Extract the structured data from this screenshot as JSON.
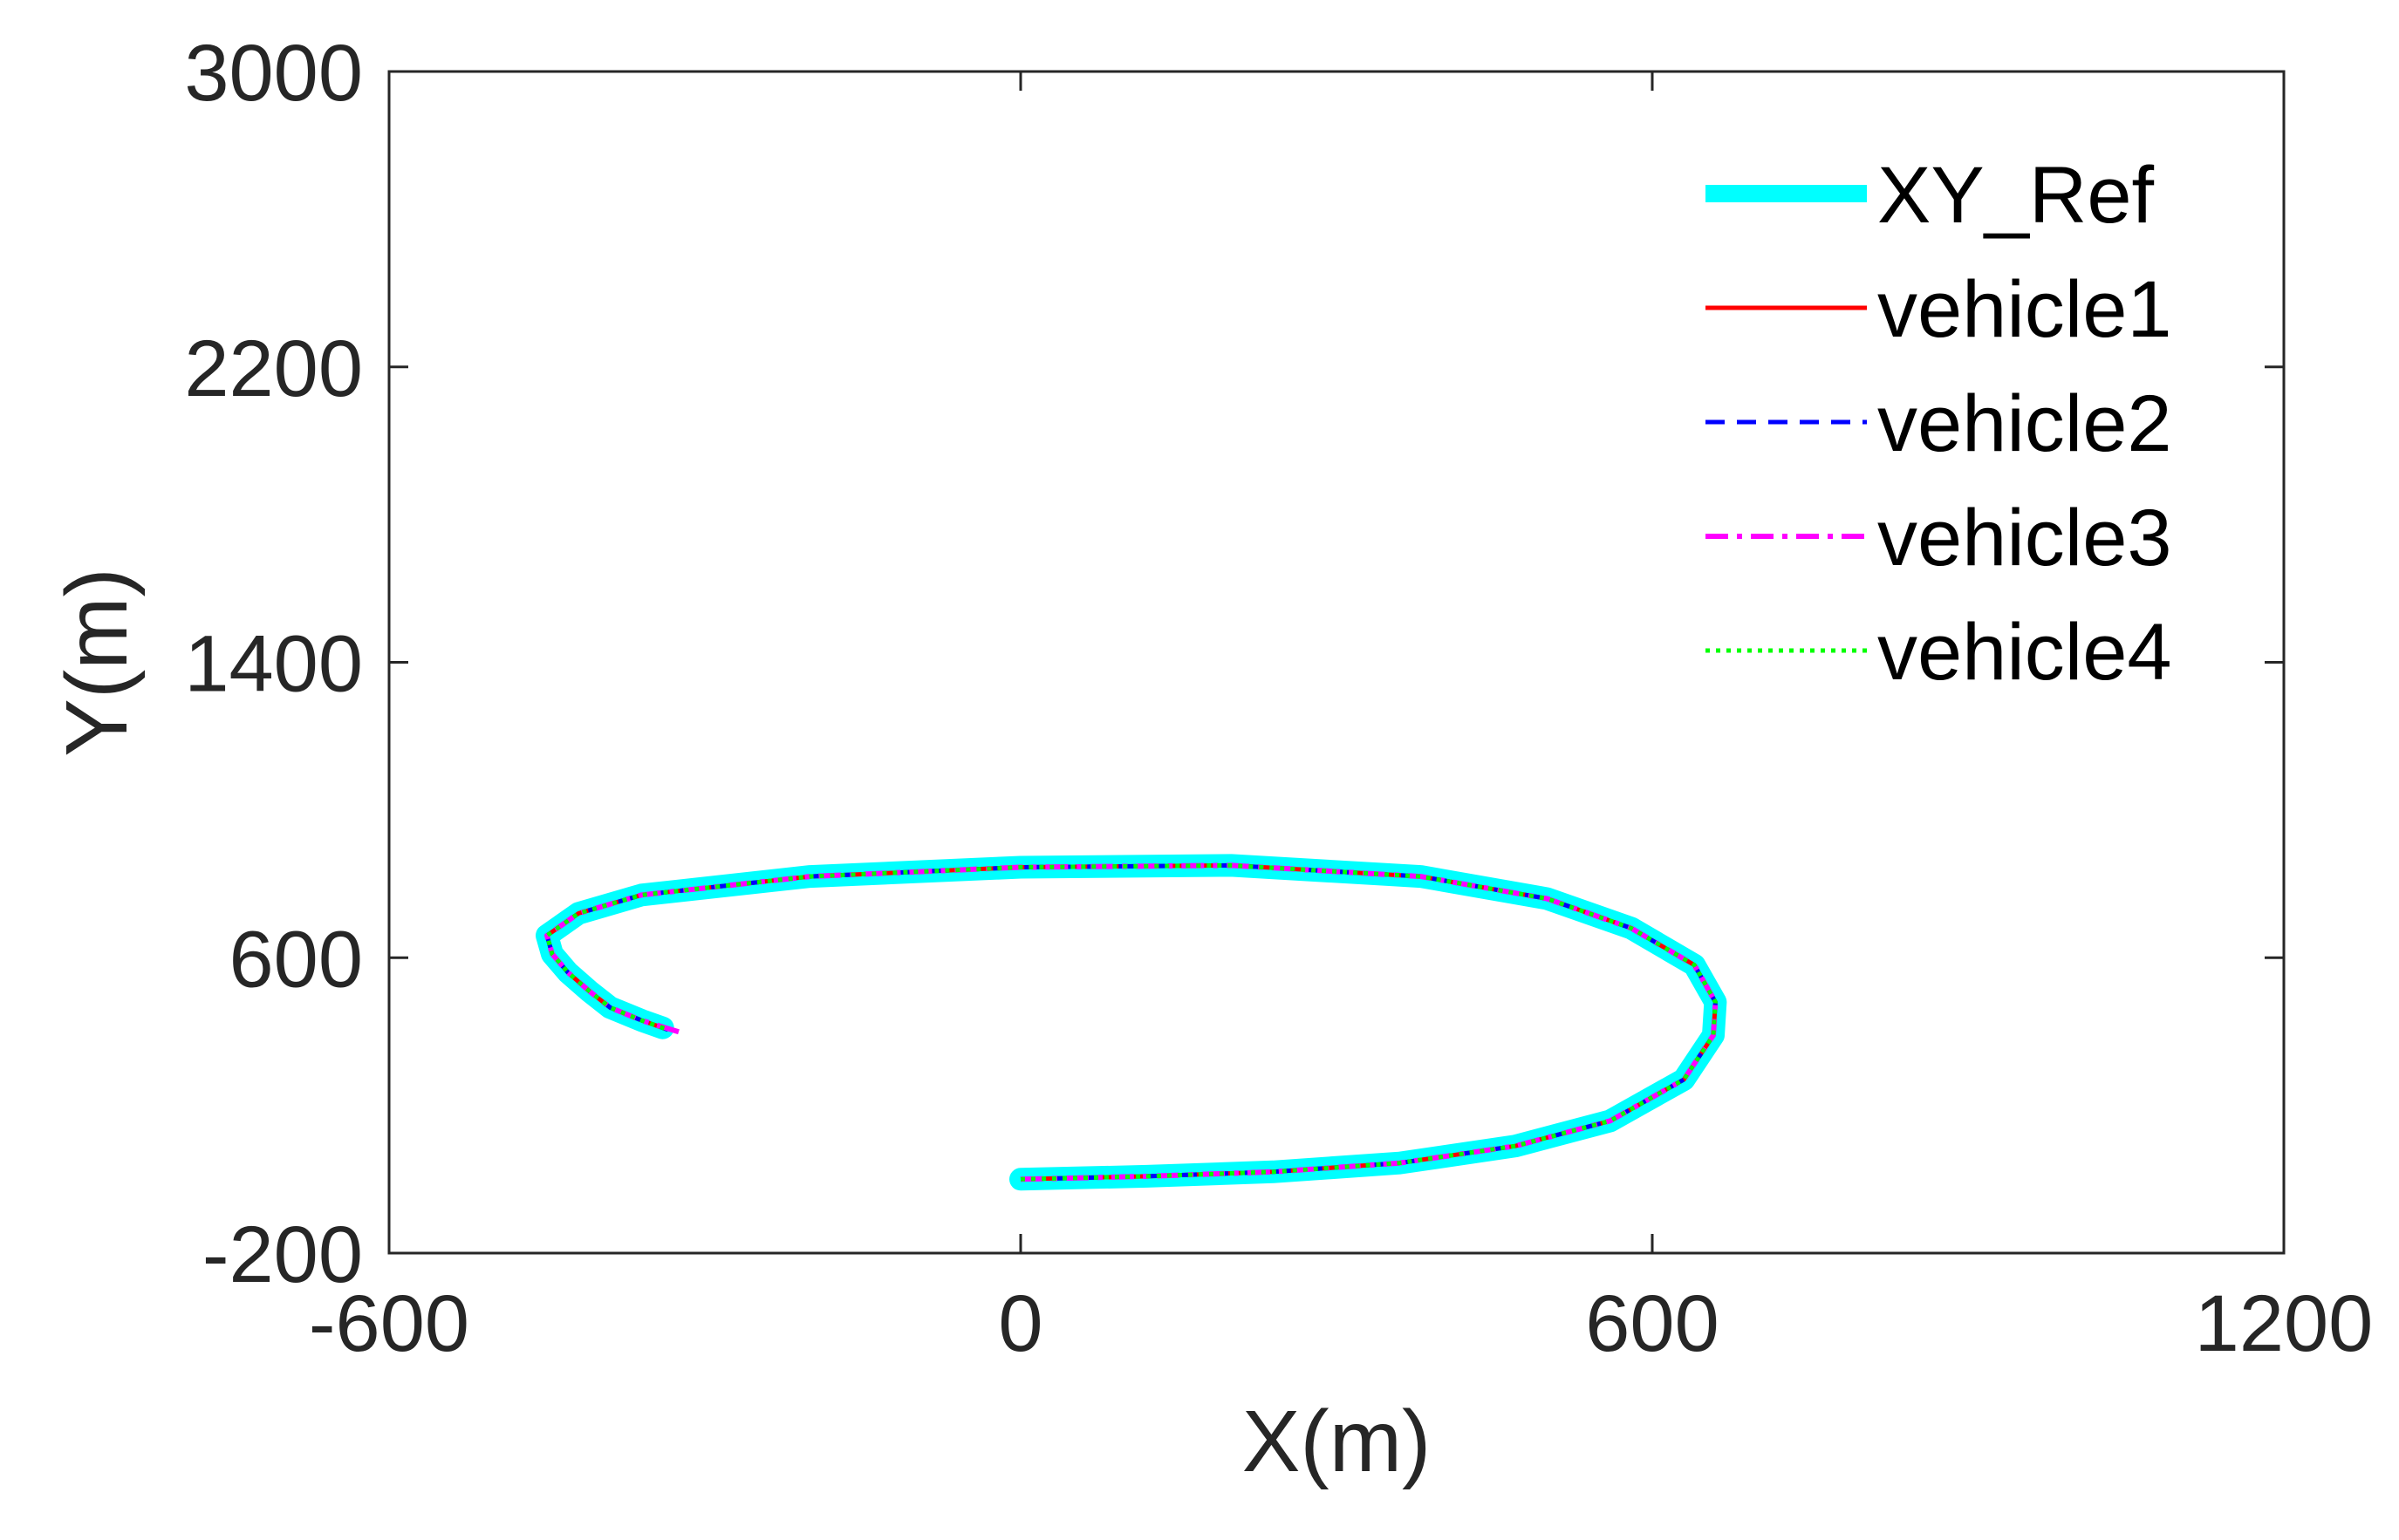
{
  "chart_data": {
    "type": "line",
    "title": "",
    "xlabel": "X(m)",
    "ylabel": "Y(m)",
    "xlim": [
      -600,
      1200
    ],
    "ylim": [
      -200,
      3000
    ],
    "xticks": [
      -600,
      0,
      600,
      1200
    ],
    "yticks": [
      -200,
      600,
      1400,
      2200,
      3000
    ],
    "xtick_labels": [
      "-600",
      "0",
      "600",
      "1200"
    ],
    "ytick_labels": [
      "-200",
      "600",
      "1400",
      "2200",
      "3000"
    ],
    "grid": false,
    "legend_position": "top-right",
    "series": [
      {
        "name": "XY_Ref",
        "color": "#00FFFF",
        "style": "solid-thick",
        "points": [
          [
            0,
            0
          ],
          [
            120,
            8
          ],
          [
            240,
            20
          ],
          [
            360,
            44
          ],
          [
            470,
            90
          ],
          [
            560,
            158
          ],
          [
            630,
            270
          ],
          [
            658,
            390
          ],
          [
            660,
            480
          ],
          [
            640,
            580
          ],
          [
            580,
            680
          ],
          [
            500,
            760
          ],
          [
            380,
            820
          ],
          [
            200,
            850
          ],
          [
            0,
            845
          ],
          [
            -200,
            820
          ],
          [
            -360,
            770
          ],
          [
            -420,
            720
          ],
          [
            -450,
            660
          ],
          [
            -445,
            610
          ],
          [
            -430,
            560
          ],
          [
            -410,
            510
          ],
          [
            -390,
            465
          ],
          [
            -360,
            430
          ],
          [
            -340,
            410
          ]
        ]
      },
      {
        "name": "vehicle1",
        "color": "#FF0000",
        "style": "solid",
        "points": [
          [
            0,
            0
          ],
          [
            120,
            8
          ],
          [
            240,
            20
          ],
          [
            360,
            44
          ],
          [
            470,
            90
          ],
          [
            560,
            158
          ],
          [
            630,
            270
          ],
          [
            658,
            390
          ],
          [
            660,
            480
          ],
          [
            640,
            580
          ],
          [
            580,
            680
          ],
          [
            500,
            760
          ],
          [
            380,
            820
          ],
          [
            200,
            850
          ],
          [
            0,
            845
          ],
          [
            -200,
            820
          ],
          [
            -360,
            770
          ],
          [
            -420,
            720
          ],
          [
            -450,
            660
          ],
          [
            -445,
            610
          ],
          [
            -430,
            560
          ],
          [
            -410,
            510
          ],
          [
            -390,
            465
          ],
          [
            -360,
            430
          ],
          [
            -335,
            405
          ]
        ]
      },
      {
        "name": "vehicle2",
        "color": "#0000FF",
        "style": "dashed",
        "points": [
          [
            0,
            0
          ],
          [
            120,
            8
          ],
          [
            240,
            20
          ],
          [
            360,
            44
          ],
          [
            470,
            90
          ],
          [
            560,
            158
          ],
          [
            630,
            270
          ],
          [
            658,
            390
          ],
          [
            660,
            480
          ],
          [
            640,
            580
          ],
          [
            580,
            680
          ],
          [
            500,
            760
          ],
          [
            380,
            820
          ],
          [
            200,
            850
          ],
          [
            0,
            845
          ],
          [
            -200,
            820
          ],
          [
            -360,
            770
          ],
          [
            -420,
            720
          ],
          [
            -450,
            660
          ],
          [
            -445,
            610
          ],
          [
            -430,
            560
          ],
          [
            -410,
            510
          ],
          [
            -390,
            465
          ],
          [
            -360,
            430
          ],
          [
            -335,
            405
          ]
        ]
      },
      {
        "name": "vehicle3",
        "color": "#FF00FF",
        "style": "dash-dot",
        "points": [
          [
            0,
            0
          ],
          [
            120,
            8
          ],
          [
            240,
            20
          ],
          [
            360,
            44
          ],
          [
            470,
            90
          ],
          [
            560,
            158
          ],
          [
            630,
            270
          ],
          [
            658,
            390
          ],
          [
            660,
            480
          ],
          [
            640,
            580
          ],
          [
            580,
            680
          ],
          [
            500,
            760
          ],
          [
            380,
            820
          ],
          [
            200,
            850
          ],
          [
            0,
            845
          ],
          [
            -200,
            820
          ],
          [
            -360,
            770
          ],
          [
            -420,
            720
          ],
          [
            -450,
            660
          ],
          [
            -445,
            610
          ],
          [
            -430,
            560
          ],
          [
            -410,
            510
          ],
          [
            -390,
            465
          ],
          [
            -360,
            430
          ],
          [
            -320,
            395
          ]
        ]
      },
      {
        "name": "vehicle4",
        "color": "#00FF00",
        "style": "dotted",
        "points": [
          [
            0,
            0
          ],
          [
            120,
            8
          ],
          [
            240,
            20
          ],
          [
            360,
            44
          ],
          [
            470,
            90
          ],
          [
            560,
            158
          ],
          [
            630,
            270
          ],
          [
            658,
            390
          ],
          [
            660,
            480
          ],
          [
            640,
            580
          ],
          [
            580,
            680
          ],
          [
            500,
            760
          ],
          [
            380,
            820
          ],
          [
            200,
            850
          ],
          [
            0,
            845
          ],
          [
            -200,
            820
          ],
          [
            -360,
            770
          ],
          [
            -420,
            720
          ],
          [
            -450,
            660
          ],
          [
            -445,
            610
          ],
          [
            -430,
            560
          ],
          [
            -410,
            510
          ],
          [
            -390,
            465
          ],
          [
            -360,
            430
          ],
          [
            -335,
            405
          ]
        ]
      }
    ]
  }
}
